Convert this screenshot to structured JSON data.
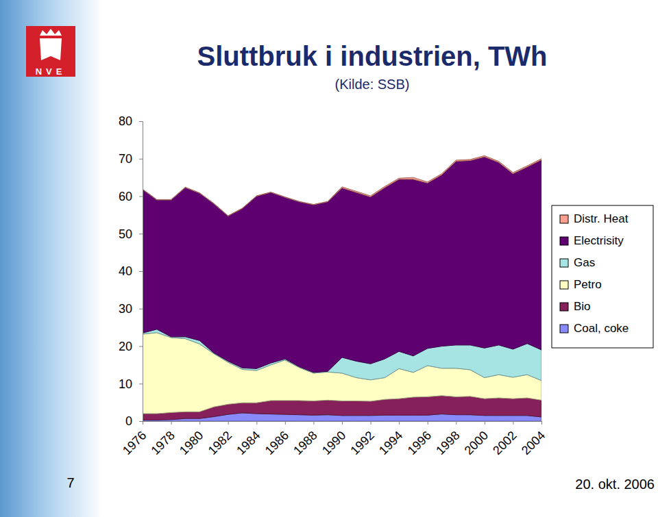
{
  "chart_data": {
    "type": "area",
    "title": "Sluttbruk i industrien, TWh",
    "subtitle": "(Kilde: SSB)",
    "stacked": true,
    "legend": "right",
    "grid": false,
    "x": [
      1976,
      1977,
      1978,
      1979,
      1980,
      1981,
      1982,
      1983,
      1984,
      1985,
      1986,
      1987,
      1988,
      1989,
      1990,
      1991,
      1992,
      1993,
      1994,
      1995,
      1996,
      1997,
      1998,
      1999,
      2000,
      2001,
      2002,
      2003,
      2004
    ],
    "xlim": [
      1976,
      2004
    ],
    "xticks": [
      1976,
      1978,
      1980,
      1982,
      1984,
      1986,
      1988,
      1990,
      1992,
      1994,
      1996,
      1998,
      2000,
      2002,
      2004
    ],
    "ylim": [
      0,
      80
    ],
    "yticks": [
      0,
      10,
      20,
      30,
      40,
      50,
      60,
      70,
      80
    ],
    "series": [
      {
        "name": "Distr. Heat",
        "color": "#ff9f8f",
        "values": [
          0.1,
          0.1,
          0.1,
          0.1,
          0.1,
          0.1,
          0.1,
          0.1,
          0.1,
          0.1,
          0.1,
          0.1,
          0.1,
          0.1,
          0.3,
          0.3,
          0.3,
          0.3,
          0.3,
          0.5,
          0.3,
          0.3,
          0.3,
          0.3,
          0.3,
          0.3,
          0.3,
          0.3,
          0.3
        ]
      },
      {
        "name": "Electrisity",
        "color": "#5e0070",
        "values": [
          38.3,
          34.5,
          36.5,
          39.8,
          39.3,
          39.8,
          38.7,
          42.5,
          46.0,
          45.5,
          43.1,
          44.0,
          44.7,
          45.2,
          45.2,
          45.0,
          44.5,
          45.7,
          45.9,
          47.1,
          44.1,
          45.7,
          49.0,
          49.2,
          51.0,
          48.7,
          46.8,
          47.1,
          50.7
        ]
      },
      {
        "name": "Gas",
        "color": "#a6e4e4",
        "values": [
          0.3,
          0.9,
          0.2,
          0.5,
          0.9,
          0.2,
          0.3,
          0.4,
          0.5,
          0.5,
          0.3,
          0.2,
          0.2,
          0.2,
          4.2,
          4.4,
          4.3,
          5.0,
          4.6,
          4.4,
          4.6,
          5.9,
          6.2,
          6.6,
          7.9,
          7.9,
          7.5,
          8.3,
          8.2
        ]
      },
      {
        "name": "Petro",
        "color": "#ffffc4",
        "values": [
          21.2,
          21.6,
          20.0,
          19.5,
          18.1,
          14.2,
          11.2,
          8.9,
          8.6,
          9.5,
          10.8,
          8.8,
          7.4,
          7.5,
          7.4,
          6.2,
          5.7,
          5.8,
          8.0,
          6.6,
          8.3,
          7.3,
          7.6,
          7.1,
          5.6,
          6.2,
          5.7,
          6.2,
          5.2
        ]
      },
      {
        "name": "Bio",
        "color": "#86205a",
        "values": [
          1.7,
          1.7,
          1.9,
          1.8,
          1.8,
          2.6,
          2.7,
          2.7,
          2.9,
          3.6,
          3.7,
          3.8,
          3.8,
          3.9,
          3.9,
          3.9,
          3.8,
          4.2,
          4.4,
          4.8,
          4.9,
          4.9,
          4.8,
          4.9,
          4.5,
          4.7,
          4.5,
          4.7,
          4.5
        ]
      },
      {
        "name": "Coal, coke",
        "color": "#8a8aff",
        "values": [
          0.3,
          0.3,
          0.4,
          0.7,
          0.7,
          1.2,
          1.8,
          2.2,
          2.0,
          1.9,
          1.8,
          1.7,
          1.6,
          1.7,
          1.5,
          1.5,
          1.5,
          1.6,
          1.6,
          1.6,
          1.6,
          1.9,
          1.7,
          1.7,
          1.5,
          1.5,
          1.5,
          1.5,
          1.1
        ]
      }
    ],
    "annotations": [
      {
        "text": "NVE"
      },
      {
        "text": "7"
      },
      {
        "text": "20. okt. 2006"
      }
    ]
  }
}
